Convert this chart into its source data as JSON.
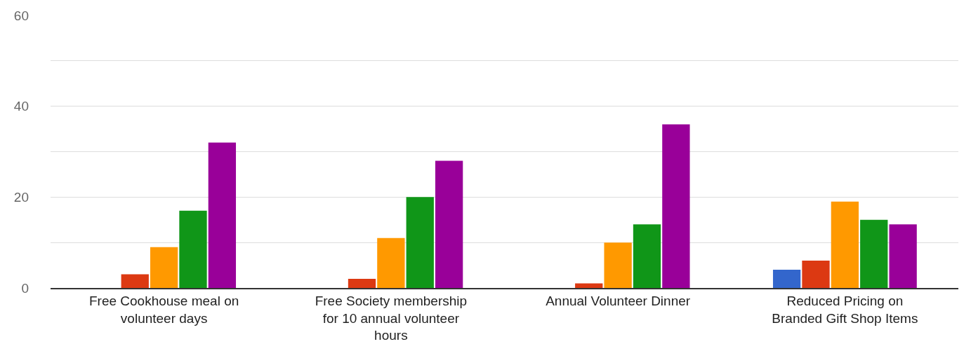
{
  "chart_data": {
    "type": "bar",
    "categories": [
      "Free Cookhouse meal on volunteer days",
      "Free Society membership for 10 annual volunteer hours",
      "Annual Volunteer Dinner",
      "Reduced Pricing on Branded Gift Shop Items"
    ],
    "series": [
      {
        "color": "#3366cc",
        "values": [
          0,
          0,
          0,
          4
        ]
      },
      {
        "color": "#dc3912",
        "values": [
          3,
          2,
          1,
          6
        ]
      },
      {
        "color": "#ff9900",
        "values": [
          9,
          11,
          10,
          19
        ]
      },
      {
        "color": "#109618",
        "values": [
          17,
          20,
          14,
          15
        ]
      },
      {
        "color": "#990099",
        "values": [
          32,
          28,
          36,
          14
        ]
      }
    ],
    "ylim": [
      0,
      60
    ],
    "yticks": [
      0,
      {
        "value": 10,
        "label": null
      },
      20,
      {
        "value": 30,
        "label": null
      },
      40,
      {
        "value": 50,
        "label": null
      },
      60
    ],
    "grid": "y"
  }
}
